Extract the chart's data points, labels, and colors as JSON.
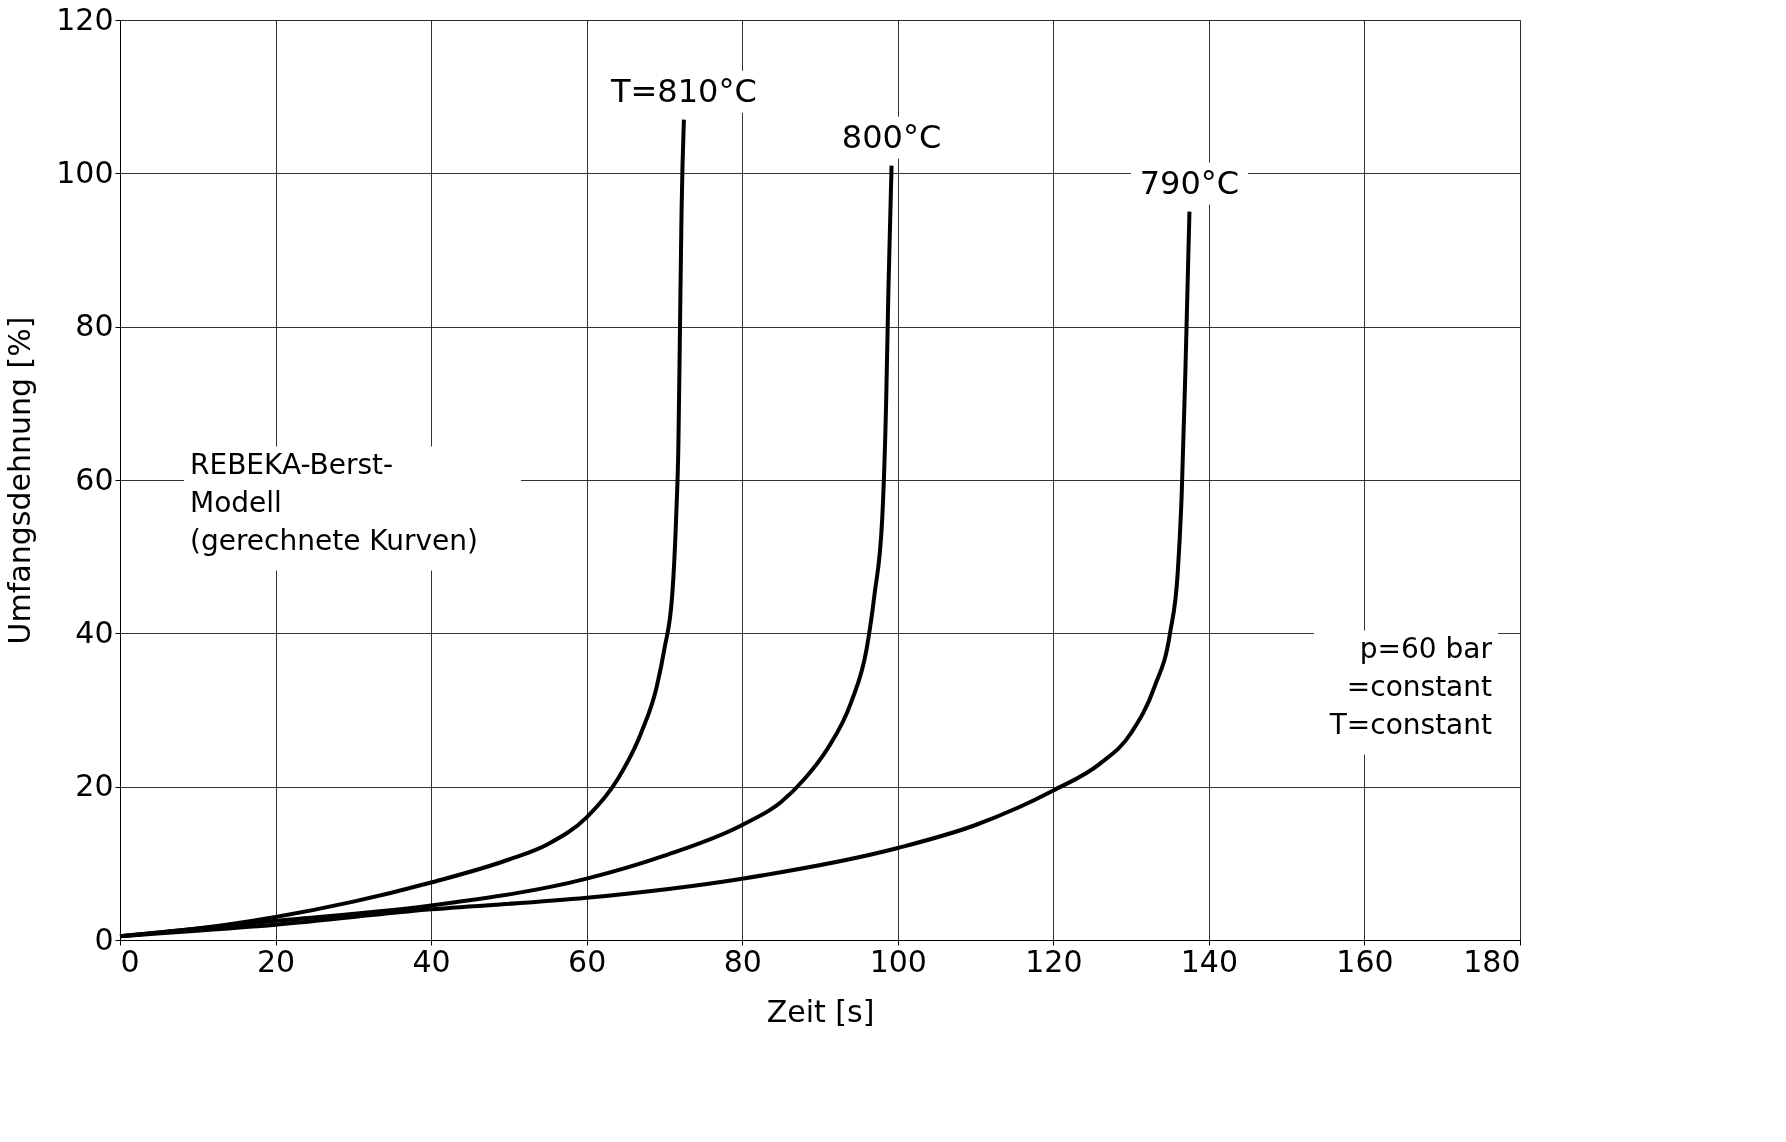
{
  "chart_data": {
    "type": "line",
    "xlabel": "Zeit [s]",
    "ylabel": "Umfangsdehnung [%]",
    "xlim": [
      0,
      180
    ],
    "ylim": [
      0,
      120
    ],
    "xticks": [
      0,
      20,
      40,
      60,
      80,
      100,
      120,
      140,
      160,
      180
    ],
    "yticks": [
      0,
      20,
      40,
      60,
      80,
      100,
      120
    ],
    "grid": true,
    "line_style": "solid",
    "marker": "none",
    "series": [
      {
        "name": "T=810°C",
        "color": "#000000",
        "x": [
          0,
          10,
          20,
          30,
          40,
          50,
          55,
          60,
          64,
          67,
          69,
          70,
          71,
          71.5,
          71.8,
          72,
          72.2,
          72.5
        ],
        "values": [
          0.5,
          1.5,
          3,
          5,
          7.5,
          10.5,
          12.5,
          16,
          21,
          27,
          33,
          38,
          45,
          55,
          65,
          80,
          95,
          107
        ]
      },
      {
        "name": "800°C",
        "color": "#000000",
        "x": [
          0,
          20,
          40,
          60,
          70,
          80,
          85,
          88,
          91,
          94,
          96,
          97,
          98,
          98.5,
          98.8,
          99.2
        ],
        "values": [
          0.5,
          2.5,
          4.5,
          8,
          11,
          15,
          18,
          21,
          25,
          31,
          38,
          45,
          55,
          70,
          85,
          101
        ]
      },
      {
        "name": "790°C",
        "color": "#000000",
        "x": [
          0,
          20,
          40,
          60,
          80,
          100,
          110,
          120,
          126,
          130,
          133,
          135,
          136,
          136.5,
          137,
          137.5
        ],
        "values": [
          0.5,
          2,
          4,
          5.5,
          8,
          12,
          15,
          19.5,
          23,
          27,
          33,
          40,
          48,
          58,
          75,
          95
        ]
      }
    ],
    "annotations": [
      "REBEKA-Berst-\nModell\n(gerechnete Kurven)",
      "p=60 bar\n =constant\nT=constant"
    ]
  }
}
